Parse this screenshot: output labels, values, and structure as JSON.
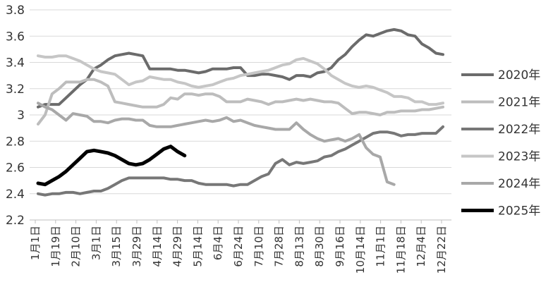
{
  "chart_data": {
    "type": "line",
    "title": "",
    "xlabel": "",
    "ylabel": "",
    "ylim": [
      2.2,
      3.8
    ],
    "yticks": [
      "2.2",
      "2.4",
      "2.6",
      "2.8",
      "3",
      "3.2",
      "3.4",
      "3.6",
      "3.8"
    ],
    "grid": true,
    "legend_position": "right",
    "x_tick_labels": [
      "1月1日",
      "1月19日",
      "2月10日",
      "3月1日",
      "3月15日",
      "3月29日",
      "4月14日",
      "4月29日",
      "5月14日",
      "6月4日",
      "6月24日",
      "7月10日",
      "7月28日",
      "8月13日",
      "8月30日",
      "9月16日",
      "10月14日",
      "11月1日",
      "11月18日",
      "12月4日",
      "12月22日"
    ],
    "series": [
      {
        "name": "2020年",
        "color": "#6b6b6b",
        "width": 4,
        "values": [
          3.06,
          3.08,
          3.08,
          3.08,
          3.13,
          3.18,
          3.23,
          3.27,
          3.35,
          3.38,
          3.42,
          3.45,
          3.46,
          3.47,
          3.46,
          3.45,
          3.35,
          3.35,
          3.35,
          3.35,
          3.34,
          3.34,
          3.33,
          3.32,
          3.33,
          3.35,
          3.35,
          3.35,
          3.36,
          3.36,
          3.3,
          3.3,
          3.31,
          3.31,
          3.3,
          3.29,
          3.27,
          3.3,
          3.3,
          3.29,
          3.32,
          3.33,
          3.36,
          3.42,
          3.46,
          3.52,
          3.57,
          3.61,
          3.6,
          3.62,
          3.64,
          3.65,
          3.64,
          3.61,
          3.6,
          3.54,
          3.51,
          3.47,
          3.46
        ]
      },
      {
        "name": "2021年",
        "color": "#bdbdbd",
        "width": 4,
        "values": [
          2.93,
          3.0,
          3.16,
          3.2,
          3.25,
          3.25,
          3.25,
          3.27,
          3.27,
          3.25,
          3.22,
          3.1,
          3.09,
          3.08,
          3.07,
          3.06,
          3.06,
          3.06,
          3.08,
          3.13,
          3.12,
          3.16,
          3.16,
          3.15,
          3.16,
          3.16,
          3.14,
          3.1,
          3.1,
          3.1,
          3.12,
          3.11,
          3.1,
          3.08,
          3.1,
          3.1,
          3.11,
          3.12,
          3.11,
          3.12,
          3.11,
          3.1,
          3.1,
          3.09,
          3.05,
          3.01,
          3.02,
          3.02,
          3.01,
          3.0,
          3.02,
          3.02,
          3.03,
          3.03,
          3.03,
          3.04,
          3.04,
          3.05,
          3.06
        ]
      },
      {
        "name": "2022年",
        "color": "#777777",
        "width": 4,
        "values": [
          2.4,
          2.39,
          2.4,
          2.4,
          2.41,
          2.41,
          2.4,
          2.41,
          2.42,
          2.42,
          2.44,
          2.47,
          2.5,
          2.52,
          2.52,
          2.52,
          2.52,
          2.52,
          2.52,
          2.51,
          2.51,
          2.5,
          2.5,
          2.48,
          2.47,
          2.47,
          2.47,
          2.47,
          2.46,
          2.47,
          2.47,
          2.5,
          2.53,
          2.55,
          2.63,
          2.66,
          2.62,
          2.64,
          2.63,
          2.64,
          2.65,
          2.68,
          2.69,
          2.72,
          2.74,
          2.77,
          2.8,
          2.83,
          2.86,
          2.87,
          2.87,
          2.86,
          2.84,
          2.85,
          2.85,
          2.86,
          2.86,
          2.86,
          2.91
        ]
      },
      {
        "name": "2023年",
        "color": "#c6c6c6",
        "width": 4,
        "values": [
          3.45,
          3.44,
          3.44,
          3.45,
          3.45,
          3.43,
          3.41,
          3.38,
          3.35,
          3.33,
          3.32,
          3.31,
          3.27,
          3.23,
          3.25,
          3.26,
          3.29,
          3.28,
          3.27,
          3.27,
          3.25,
          3.24,
          3.22,
          3.21,
          3.22,
          3.23,
          3.25,
          3.27,
          3.28,
          3.3,
          3.31,
          3.32,
          3.33,
          3.34,
          3.36,
          3.38,
          3.39,
          3.42,
          3.43,
          3.41,
          3.39,
          3.35,
          3.3,
          3.27,
          3.24,
          3.22,
          3.21,
          3.22,
          3.21,
          3.19,
          3.17,
          3.14,
          3.14,
          3.13,
          3.1,
          3.1,
          3.08,
          3.08,
          3.09
        ]
      },
      {
        "name": "2024年",
        "color": "#a8a8a8",
        "width": 4,
        "values": [
          3.09,
          3.06,
          3.04,
          3.0,
          2.96,
          3.01,
          3.0,
          2.99,
          2.95,
          2.95,
          2.94,
          2.96,
          2.97,
          2.97,
          2.96,
          2.96,
          2.92,
          2.91,
          2.91,
          2.91,
          2.92,
          2.93,
          2.94,
          2.95,
          2.96,
          2.95,
          2.96,
          2.98,
          2.95,
          2.96,
          2.94,
          2.92,
          2.91,
          2.9,
          2.89,
          2.89,
          2.89,
          2.94,
          2.89,
          2.85,
          2.82,
          2.8,
          2.81,
          2.82,
          2.8,
          2.82,
          2.85,
          2.75,
          2.7,
          2.68,
          2.49,
          2.47
        ]
      },
      {
        "name": "2025年",
        "color": "#000000",
        "width": 5,
        "values": [
          2.48,
          2.47,
          2.5,
          2.53,
          2.57,
          2.62,
          2.67,
          2.72,
          2.73,
          2.72,
          2.71,
          2.69,
          2.66,
          2.63,
          2.62,
          2.63,
          2.66,
          2.7,
          2.74,
          2.76,
          2.72,
          2.69
        ]
      }
    ]
  }
}
